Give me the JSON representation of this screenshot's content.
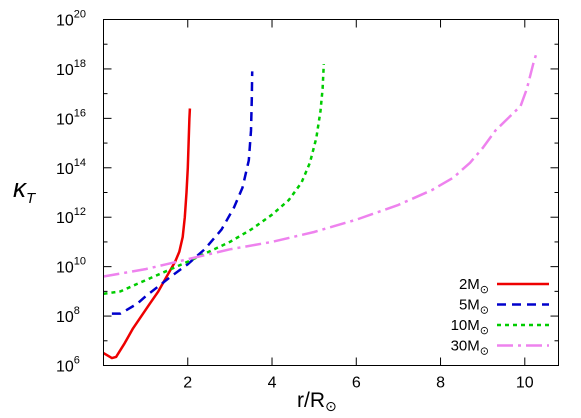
{
  "chart_data": {
    "type": "line",
    "title": "",
    "xlabel": {
      "main": "r/R",
      "subscript": "⊙"
    },
    "ylabel": {
      "main": "κ",
      "subscript": "T"
    },
    "xlim": [
      0,
      10.8
    ],
    "ylim_log10": [
      6,
      20
    ],
    "yscale": "log",
    "grid": false,
    "legend_position": "bottom-right",
    "x_ticks": [
      "2",
      "4",
      "6",
      "8",
      "10"
    ],
    "x_tick_values": [
      2,
      4,
      6,
      8,
      10
    ],
    "y_ticks": [
      {
        "base": "10",
        "exp": "6",
        "value": 6
      },
      {
        "base": "10",
        "exp": "8",
        "value": 8
      },
      {
        "base": "10",
        "exp": "10",
        "value": 10
      },
      {
        "base": "10",
        "exp": "12",
        "value": 12
      },
      {
        "base": "10",
        "exp": "14",
        "value": 14
      },
      {
        "base": "10",
        "exp": "16",
        "value": 16
      },
      {
        "base": "10",
        "exp": "18",
        "value": 18
      },
      {
        "base": "10",
        "exp": "20",
        "value": 20
      }
    ],
    "series": [
      {
        "name": "2M⊙",
        "mass": "2M",
        "sun": "⊙",
        "color": "#ee0000",
        "dash": "solid",
        "points": [
          [
            0.0,
            6.5
          ],
          [
            0.1,
            6.4
          ],
          [
            0.2,
            6.3
          ],
          [
            0.3,
            6.35
          ],
          [
            0.5,
            6.9
          ],
          [
            0.7,
            7.5
          ],
          [
            0.9,
            8.0
          ],
          [
            1.1,
            8.5
          ],
          [
            1.3,
            9.0
          ],
          [
            1.5,
            9.6
          ],
          [
            1.7,
            10.2
          ],
          [
            1.8,
            10.6
          ],
          [
            1.88,
            11.2
          ],
          [
            1.93,
            12.0
          ],
          [
            1.97,
            13.0
          ],
          [
            2.0,
            14.0
          ],
          [
            2.02,
            15.0
          ],
          [
            2.04,
            16.0
          ],
          [
            2.05,
            16.4
          ]
        ]
      },
      {
        "name": "5M⊙",
        "mass": "5M",
        "sun": "⊙",
        "color": "#0000cc",
        "dash": "dashed",
        "points": [
          [
            0.2,
            8.1
          ],
          [
            0.4,
            8.1
          ],
          [
            0.6,
            8.3
          ],
          [
            0.8,
            8.5
          ],
          [
            1.0,
            8.8
          ],
          [
            1.3,
            9.2
          ],
          [
            1.6,
            9.6
          ],
          [
            2.0,
            10.1
          ],
          [
            2.4,
            10.7
          ],
          [
            2.8,
            11.5
          ],
          [
            3.1,
            12.4
          ],
          [
            3.3,
            13.2
          ],
          [
            3.45,
            14.3
          ],
          [
            3.5,
            15.5
          ],
          [
            3.52,
            16.8
          ],
          [
            3.53,
            17.9
          ]
        ]
      },
      {
        "name": "10M⊙",
        "mass": "10M",
        "sun": "⊙",
        "color": "#00cc00",
        "dash": "dotted",
        "points": [
          [
            0.0,
            8.9
          ],
          [
            0.4,
            9.0
          ],
          [
            0.8,
            9.3
          ],
          [
            1.2,
            9.6
          ],
          [
            1.6,
            9.9
          ],
          [
            2.0,
            10.2
          ],
          [
            2.5,
            10.6
          ],
          [
            3.0,
            11.0
          ],
          [
            3.5,
            11.5
          ],
          [
            4.0,
            12.1
          ],
          [
            4.4,
            12.7
          ],
          [
            4.7,
            13.4
          ],
          [
            4.9,
            14.2
          ],
          [
            5.05,
            15.2
          ],
          [
            5.15,
            16.3
          ],
          [
            5.2,
            17.2
          ],
          [
            5.23,
            18.2
          ]
        ]
      },
      {
        "name": "30M⊙",
        "mass": "30M",
        "sun": "⊙",
        "color": "#ee82ee",
        "dash": "dashdot",
        "points": [
          [
            0.0,
            9.6
          ],
          [
            0.5,
            9.75
          ],
          [
            1.0,
            9.9
          ],
          [
            1.5,
            10.1
          ],
          [
            2.0,
            10.3
          ],
          [
            3.0,
            10.7
          ],
          [
            4.0,
            11.0
          ],
          [
            5.0,
            11.4
          ],
          [
            6.0,
            11.9
          ],
          [
            7.0,
            12.5
          ],
          [
            7.8,
            13.1
          ],
          [
            8.3,
            13.6
          ],
          [
            8.7,
            14.2
          ],
          [
            9.0,
            14.8
          ],
          [
            9.3,
            15.5
          ],
          [
            9.6,
            16.0
          ],
          [
            9.9,
            16.5
          ],
          [
            10.05,
            17.2
          ],
          [
            10.2,
            18.2
          ],
          [
            10.27,
            18.6
          ]
        ]
      }
    ]
  }
}
